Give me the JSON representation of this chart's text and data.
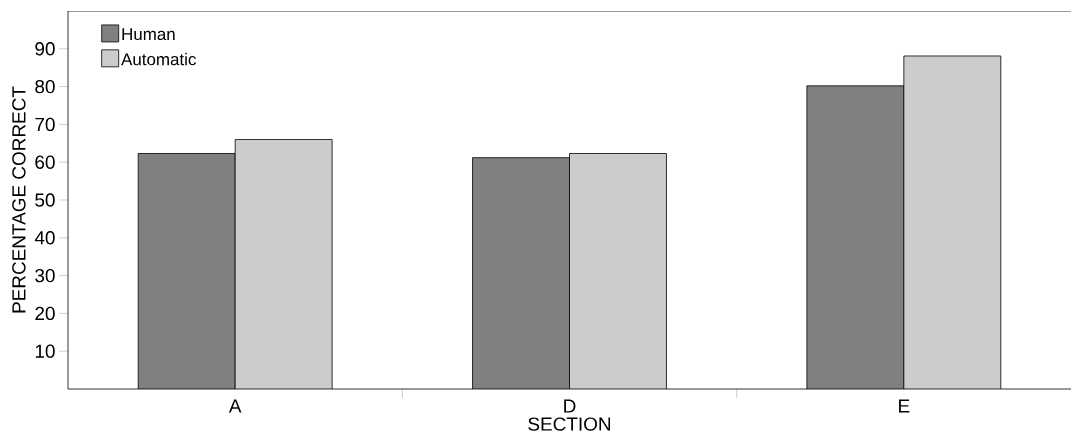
{
  "chart_data": {
    "type": "bar",
    "xlabel": "SECTION",
    "ylabel": "PERCENTAGE CORRECT",
    "categories": [
      "A",
      "D",
      "E"
    ],
    "series": [
      {
        "name": "Human",
        "color": "#808080",
        "values": [
          62.3,
          61.2,
          80.2
        ]
      },
      {
        "name": "Automatic",
        "color": "#cccccc",
        "values": [
          66.0,
          62.3,
          88.1
        ]
      }
    ],
    "ylim": [
      0,
      100
    ],
    "yticks": [
      10,
      20,
      30,
      40,
      50,
      60,
      70,
      80,
      90
    ],
    "legend": "top left",
    "grid": false
  }
}
